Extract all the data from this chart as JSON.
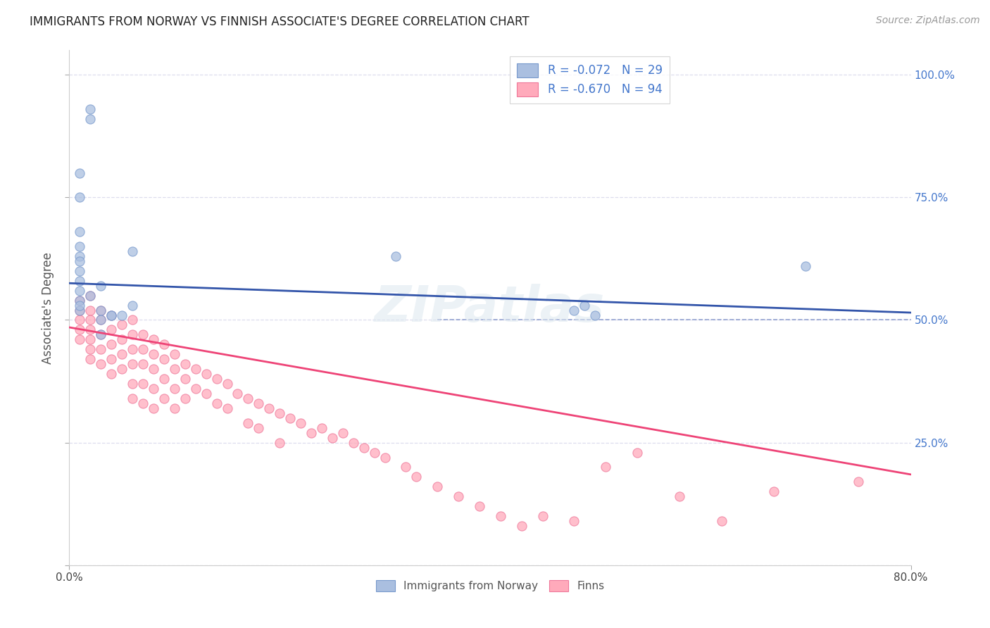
{
  "title": "IMMIGRANTS FROM NORWAY VS FINNISH ASSOCIATE'S DEGREE CORRELATION CHART",
  "source": "Source: ZipAtlas.com",
  "ylabel": "Associate's Degree",
  "x_min": 0.0,
  "x_max": 0.8,
  "y_min": 0.0,
  "y_max": 1.05,
  "legend_r1": "R = -0.072",
  "legend_n1": "N = 29",
  "legend_r2": "R = -0.670",
  "legend_n2": "N = 94",
  "blue_dot_color": "#aabfe0",
  "blue_dot_edge": "#7799cc",
  "pink_dot_color": "#ffaabb",
  "pink_dot_edge": "#ee7799",
  "blue_line_color": "#3355aa",
  "pink_line_color": "#ee4477",
  "dashed_line_color": "#8899cc",
  "grid_color": "#ddddee",
  "watermark": "ZIPatlas",
  "norway_x": [
    0.02,
    0.02,
    0.01,
    0.01,
    0.01,
    0.01,
    0.01,
    0.01,
    0.01,
    0.01,
    0.01,
    0.02,
    0.03,
    0.06,
    0.06,
    0.03,
    0.04,
    0.03,
    0.03,
    0.04,
    0.31,
    0.05,
    0.5,
    0.48,
    0.49,
    0.7,
    0.01,
    0.01,
    0.01
  ],
  "norway_y": [
    0.93,
    0.91,
    0.8,
    0.75,
    0.68,
    0.65,
    0.63,
    0.6,
    0.62,
    0.58,
    0.56,
    0.55,
    0.57,
    0.64,
    0.53,
    0.52,
    0.51,
    0.5,
    0.47,
    0.51,
    0.63,
    0.51,
    0.51,
    0.52,
    0.53,
    0.61,
    0.54,
    0.52,
    0.53
  ],
  "finns_x": [
    0.01,
    0.01,
    0.01,
    0.01,
    0.01,
    0.02,
    0.02,
    0.02,
    0.02,
    0.02,
    0.02,
    0.02,
    0.03,
    0.03,
    0.03,
    0.03,
    0.03,
    0.04,
    0.04,
    0.04,
    0.04,
    0.04,
    0.05,
    0.05,
    0.05,
    0.05,
    0.06,
    0.06,
    0.06,
    0.06,
    0.06,
    0.06,
    0.07,
    0.07,
    0.07,
    0.07,
    0.07,
    0.08,
    0.08,
    0.08,
    0.08,
    0.08,
    0.09,
    0.09,
    0.09,
    0.09,
    0.1,
    0.1,
    0.1,
    0.1,
    0.11,
    0.11,
    0.11,
    0.12,
    0.12,
    0.13,
    0.13,
    0.14,
    0.14,
    0.15,
    0.15,
    0.16,
    0.17,
    0.17,
    0.18,
    0.18,
    0.19,
    0.2,
    0.2,
    0.21,
    0.22,
    0.23,
    0.24,
    0.25,
    0.26,
    0.27,
    0.28,
    0.29,
    0.3,
    0.32,
    0.33,
    0.35,
    0.37,
    0.39,
    0.41,
    0.43,
    0.45,
    0.48,
    0.51,
    0.54,
    0.58,
    0.62,
    0.67,
    0.75
  ],
  "finns_y": [
    0.54,
    0.52,
    0.5,
    0.48,
    0.46,
    0.55,
    0.52,
    0.5,
    0.48,
    0.46,
    0.44,
    0.42,
    0.52,
    0.5,
    0.47,
    0.44,
    0.41,
    0.51,
    0.48,
    0.45,
    0.42,
    0.39,
    0.49,
    0.46,
    0.43,
    0.4,
    0.5,
    0.47,
    0.44,
    0.41,
    0.37,
    0.34,
    0.47,
    0.44,
    0.41,
    0.37,
    0.33,
    0.46,
    0.43,
    0.4,
    0.36,
    0.32,
    0.45,
    0.42,
    0.38,
    0.34,
    0.43,
    0.4,
    0.36,
    0.32,
    0.41,
    0.38,
    0.34,
    0.4,
    0.36,
    0.39,
    0.35,
    0.38,
    0.33,
    0.37,
    0.32,
    0.35,
    0.34,
    0.29,
    0.33,
    0.28,
    0.32,
    0.31,
    0.25,
    0.3,
    0.29,
    0.27,
    0.28,
    0.26,
    0.27,
    0.25,
    0.24,
    0.23,
    0.22,
    0.2,
    0.18,
    0.16,
    0.14,
    0.12,
    0.1,
    0.08,
    0.1,
    0.09,
    0.2,
    0.23,
    0.14,
    0.09,
    0.15,
    0.17
  ],
  "blue_trend_start_y": 0.575,
  "blue_trend_end_y": 0.515,
  "pink_trend_start_y": 0.485,
  "pink_trend_end_y": 0.185,
  "right_tick_color": "#4477cc",
  "bottom_legend_label1": "Immigrants from Norway",
  "bottom_legend_label2": "Finns"
}
